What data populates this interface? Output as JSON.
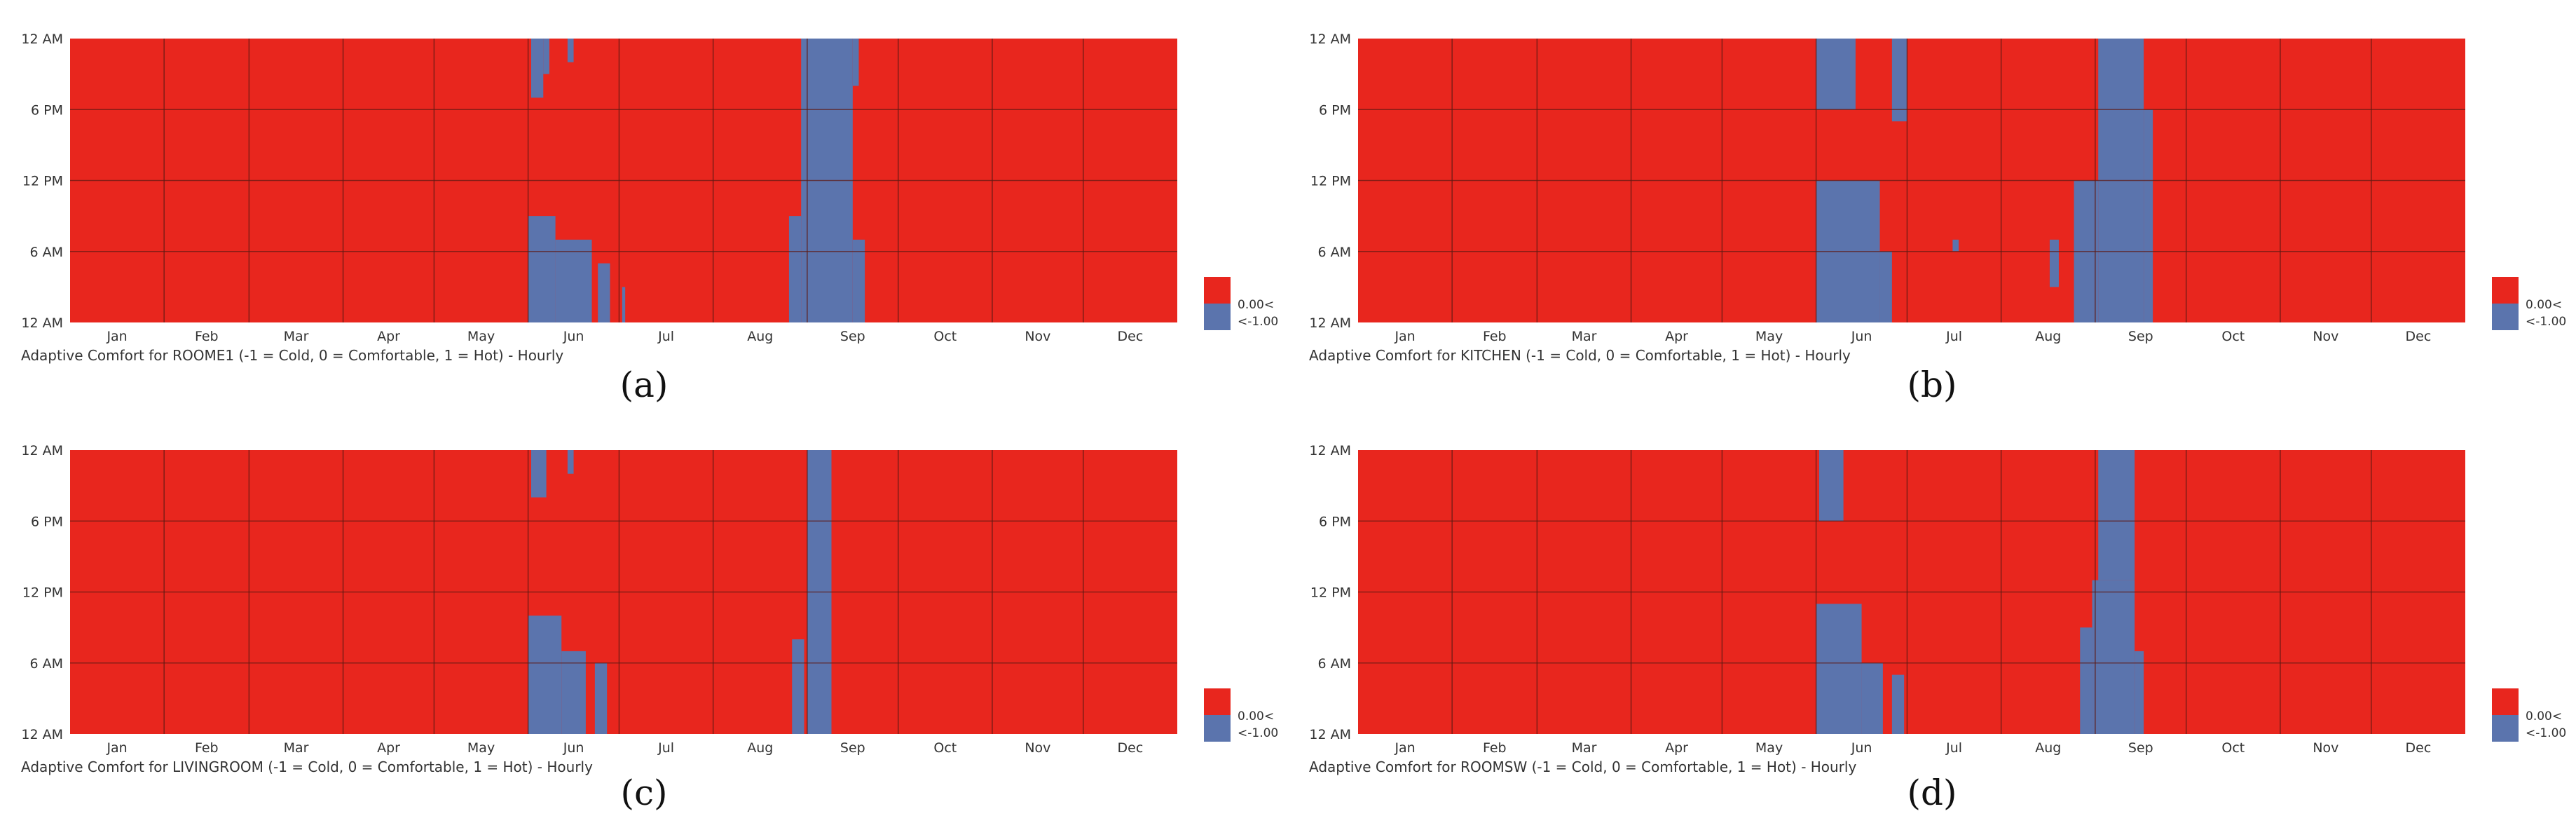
{
  "colors": {
    "hot": "#e8261e",
    "cold": "#5b74ad",
    "grid": "#5e1a12"
  },
  "chart_data": [
    {
      "type": "heatmap",
      "panel": "(a)",
      "title": "Adaptive Comfort for ROOME1 (-1 = Cold, 0 = Comfortable, 1 = Hot) - Hourly",
      "y_ticks": [
        "12 AM",
        "6 PM",
        "12 PM",
        "6 AM",
        "12 AM"
      ],
      "x_ticks": [
        "Jan",
        "Feb",
        "Mar",
        "Apr",
        "May",
        "Jun",
        "Jul",
        "Aug",
        "Sep",
        "Oct",
        "Nov",
        "Dec"
      ],
      "legend": [
        "0.00<",
        "<-1.00"
      ],
      "cold_periods": [
        {
          "start": 151,
          "end": 160,
          "from_hour": 0,
          "to_hour": 9
        },
        {
          "start": 160,
          "end": 172,
          "from_hour": 0,
          "to_hour": 7
        },
        {
          "start": 174,
          "end": 178,
          "from_hour": 0,
          "to_hour": 5
        },
        {
          "start": 152,
          "end": 156,
          "from_hour": 19,
          "to_hour": 24
        },
        {
          "start": 156,
          "end": 158,
          "from_hour": 21,
          "to_hour": 24
        },
        {
          "start": 164,
          "end": 166,
          "from_hour": 22,
          "to_hour": 24
        },
        {
          "start": 182,
          "end": 183,
          "from_hour": 0,
          "to_hour": 3
        },
        {
          "start": 237,
          "end": 241,
          "from_hour": 0,
          "to_hour": 9
        },
        {
          "start": 241,
          "end": 258,
          "from_hour": 0,
          "to_hour": 24
        },
        {
          "start": 258,
          "end": 262,
          "from_hour": 0,
          "to_hour": 7
        },
        {
          "start": 258,
          "end": 260,
          "from_hour": 20,
          "to_hour": 24
        }
      ]
    },
    {
      "type": "heatmap",
      "panel": "(b)",
      "title": "Adaptive Comfort for KITCHEN (-1 = Cold, 0 = Comfortable, 1 = Hot) - Hourly",
      "y_ticks": [
        "12 AM",
        "6 PM",
        "12 PM",
        "6 AM",
        "12 AM"
      ],
      "x_ticks": [
        "Jan",
        "Feb",
        "Mar",
        "Apr",
        "May",
        "Jun",
        "Jul",
        "Aug",
        "Sep",
        "Oct",
        "Nov",
        "Dec"
      ],
      "legend": [
        "0.00<",
        "<-1.00"
      ],
      "cold_periods": [
        {
          "start": 151,
          "end": 172,
          "from_hour": 0,
          "to_hour": 12
        },
        {
          "start": 151,
          "end": 164,
          "from_hour": 18,
          "to_hour": 24
        },
        {
          "start": 172,
          "end": 176,
          "from_hour": 0,
          "to_hour": 6
        },
        {
          "start": 176,
          "end": 181,
          "from_hour": 17,
          "to_hour": 24
        },
        {
          "start": 196,
          "end": 198,
          "from_hour": 6,
          "to_hour": 7
        },
        {
          "start": 228,
          "end": 231,
          "from_hour": 3,
          "to_hour": 7
        },
        {
          "start": 236,
          "end": 244,
          "from_hour": 0,
          "to_hour": 12
        },
        {
          "start": 244,
          "end": 259,
          "from_hour": 0,
          "to_hour": 24
        },
        {
          "start": 259,
          "end": 262,
          "from_hour": 0,
          "to_hour": 18
        }
      ]
    },
    {
      "type": "heatmap",
      "panel": "(c)",
      "title": "Adaptive Comfort for LIVINGROOM (-1 = Cold, 0 = Comfortable, 1 = Hot) - Hourly",
      "y_ticks": [
        "12 AM",
        "6 PM",
        "12 PM",
        "6 AM",
        "12 AM"
      ],
      "x_ticks": [
        "Jan",
        "Feb",
        "Mar",
        "Apr",
        "May",
        "Jun",
        "Jul",
        "Aug",
        "Sep",
        "Oct",
        "Nov",
        "Dec"
      ],
      "legend": [
        "0.00<",
        "<-1.00"
      ],
      "cold_periods": [
        {
          "start": 151,
          "end": 162,
          "from_hour": 0,
          "to_hour": 10
        },
        {
          "start": 162,
          "end": 170,
          "from_hour": 0,
          "to_hour": 7
        },
        {
          "start": 173,
          "end": 177,
          "from_hour": 0,
          "to_hour": 6
        },
        {
          "start": 152,
          "end": 157,
          "from_hour": 20,
          "to_hour": 24
        },
        {
          "start": 164,
          "end": 166,
          "from_hour": 22,
          "to_hour": 24
        },
        {
          "start": 238,
          "end": 242,
          "from_hour": 0,
          "to_hour": 8
        },
        {
          "start": 243,
          "end": 251,
          "from_hour": 0,
          "to_hour": 24
        }
      ]
    },
    {
      "type": "heatmap",
      "panel": "(d)",
      "title": "Adaptive Comfort for ROOMSW (-1 = Cold, 0 = Comfortable, 1 = Hot) - Hourly",
      "y_ticks": [
        "12 AM",
        "6 PM",
        "12 PM",
        "6 AM",
        "12 AM"
      ],
      "x_ticks": [
        "Jan",
        "Feb",
        "Mar",
        "Apr",
        "May",
        "Jun",
        "Jul",
        "Aug",
        "Sep",
        "Oct",
        "Nov",
        "Dec"
      ],
      "legend": [
        "0.00<",
        "<-1.00"
      ],
      "cold_periods": [
        {
          "start": 151,
          "end": 166,
          "from_hour": 0,
          "to_hour": 11
        },
        {
          "start": 166,
          "end": 173,
          "from_hour": 0,
          "to_hour": 6
        },
        {
          "start": 176,
          "end": 180,
          "from_hour": 0,
          "to_hour": 5
        },
        {
          "start": 152,
          "end": 160,
          "from_hour": 18,
          "to_hour": 24
        },
        {
          "start": 238,
          "end": 242,
          "from_hour": 0,
          "to_hour": 9
        },
        {
          "start": 242,
          "end": 256,
          "from_hour": 0,
          "to_hour": 13
        },
        {
          "start": 244,
          "end": 256,
          "from_hour": 13,
          "to_hour": 24
        },
        {
          "start": 256,
          "end": 259,
          "from_hour": 0,
          "to_hour": 7
        }
      ]
    }
  ]
}
